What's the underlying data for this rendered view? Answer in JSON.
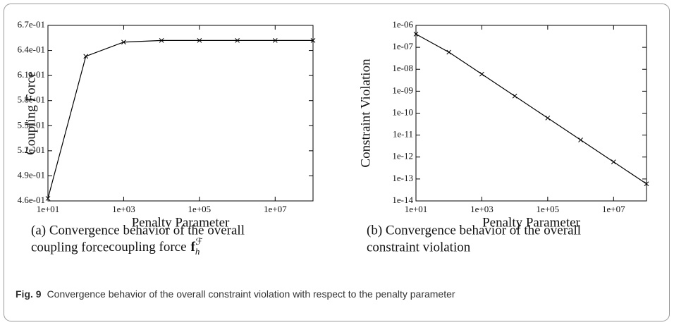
{
  "chart_data": [
    {
      "type": "line",
      "xlabel": "Penalty Parameter",
      "ylabel": "Coupling Force",
      "x": [
        10,
        100,
        1000,
        10000,
        100000,
        1000000,
        10000000,
        100000000
      ],
      "series": [
        {
          "name": "Coupling Force",
          "color": "#000000",
          "values": [
            0.463,
            0.633,
            0.65,
            0.652,
            0.652,
            0.652,
            0.652,
            0.652
          ]
        }
      ],
      "xlog": true,
      "xlim": [
        10,
        100000000
      ],
      "xticks": [
        {
          "value": 10,
          "label": "1e+01"
        },
        {
          "value": 1000,
          "label": "1e+03"
        },
        {
          "value": 100000,
          "label": "1e+05"
        },
        {
          "value": 10000000,
          "label": "1e+07"
        }
      ],
      "ylim": [
        0.46,
        0.67
      ],
      "yticks": [
        {
          "value": 0.46,
          "label": "4.6e-01"
        },
        {
          "value": 0.49,
          "label": "4.9e-01"
        },
        {
          "value": 0.52,
          "label": "5.2e-01"
        },
        {
          "value": 0.55,
          "label": "5.5e-01"
        },
        {
          "value": 0.58,
          "label": "5.8e-01"
        },
        {
          "value": 0.61,
          "label": "6.1e-01"
        },
        {
          "value": 0.64,
          "label": "6.4e-01"
        },
        {
          "value": 0.67,
          "label": "6.7e-01"
        }
      ],
      "caption_lines": [
        "(a) Convergence behavior of the overall",
        "coupling force"
      ],
      "caption_symbol": "f",
      "caption_sub": "h",
      "caption_sup": "ℱ"
    },
    {
      "type": "line",
      "xlabel": "Penalty Parameter",
      "ylabel": "Constraint Violation",
      "x": [
        10,
        100,
        1000,
        10000,
        100000,
        1000000,
        10000000,
        100000000
      ],
      "series": [
        {
          "name": "Constraint Violation",
          "color": "#000000",
          "values": [
            4e-07,
            6e-08,
            6e-09,
            6e-10,
            6e-11,
            6e-12,
            6e-13,
            6e-14
          ]
        }
      ],
      "xlog": true,
      "xlim": [
        10,
        100000000
      ],
      "xticks": [
        {
          "value": 10,
          "label": "1e+01"
        },
        {
          "value": 1000,
          "label": "1e+03"
        },
        {
          "value": 100000,
          "label": "1e+05"
        },
        {
          "value": 10000000,
          "label": "1e+07"
        }
      ],
      "ylog": true,
      "ylim": [
        1e-14,
        1e-06
      ],
      "yticks": [
        {
          "value": 1e-14,
          "label": "1e-14"
        },
        {
          "value": 1e-13,
          "label": "1e-13"
        },
        {
          "value": 1e-12,
          "label": "1e-12"
        },
        {
          "value": 1e-11,
          "label": "1e-11"
        },
        {
          "value": 1e-10,
          "label": "1e-10"
        },
        {
          "value": 1e-09,
          "label": "1e-09"
        },
        {
          "value": 1e-08,
          "label": "1e-08"
        },
        {
          "value": 1e-07,
          "label": "1e-07"
        },
        {
          "value": 1e-06,
          "label": "1e-06"
        }
      ],
      "caption_lines": [
        "(b) Convergence behavior of the overall",
        "constraint violation"
      ]
    }
  ],
  "figure_label": "Fig. 9",
  "figure_caption": "Convergence behavior of the overall constraint violation with respect to the penalty parameter"
}
